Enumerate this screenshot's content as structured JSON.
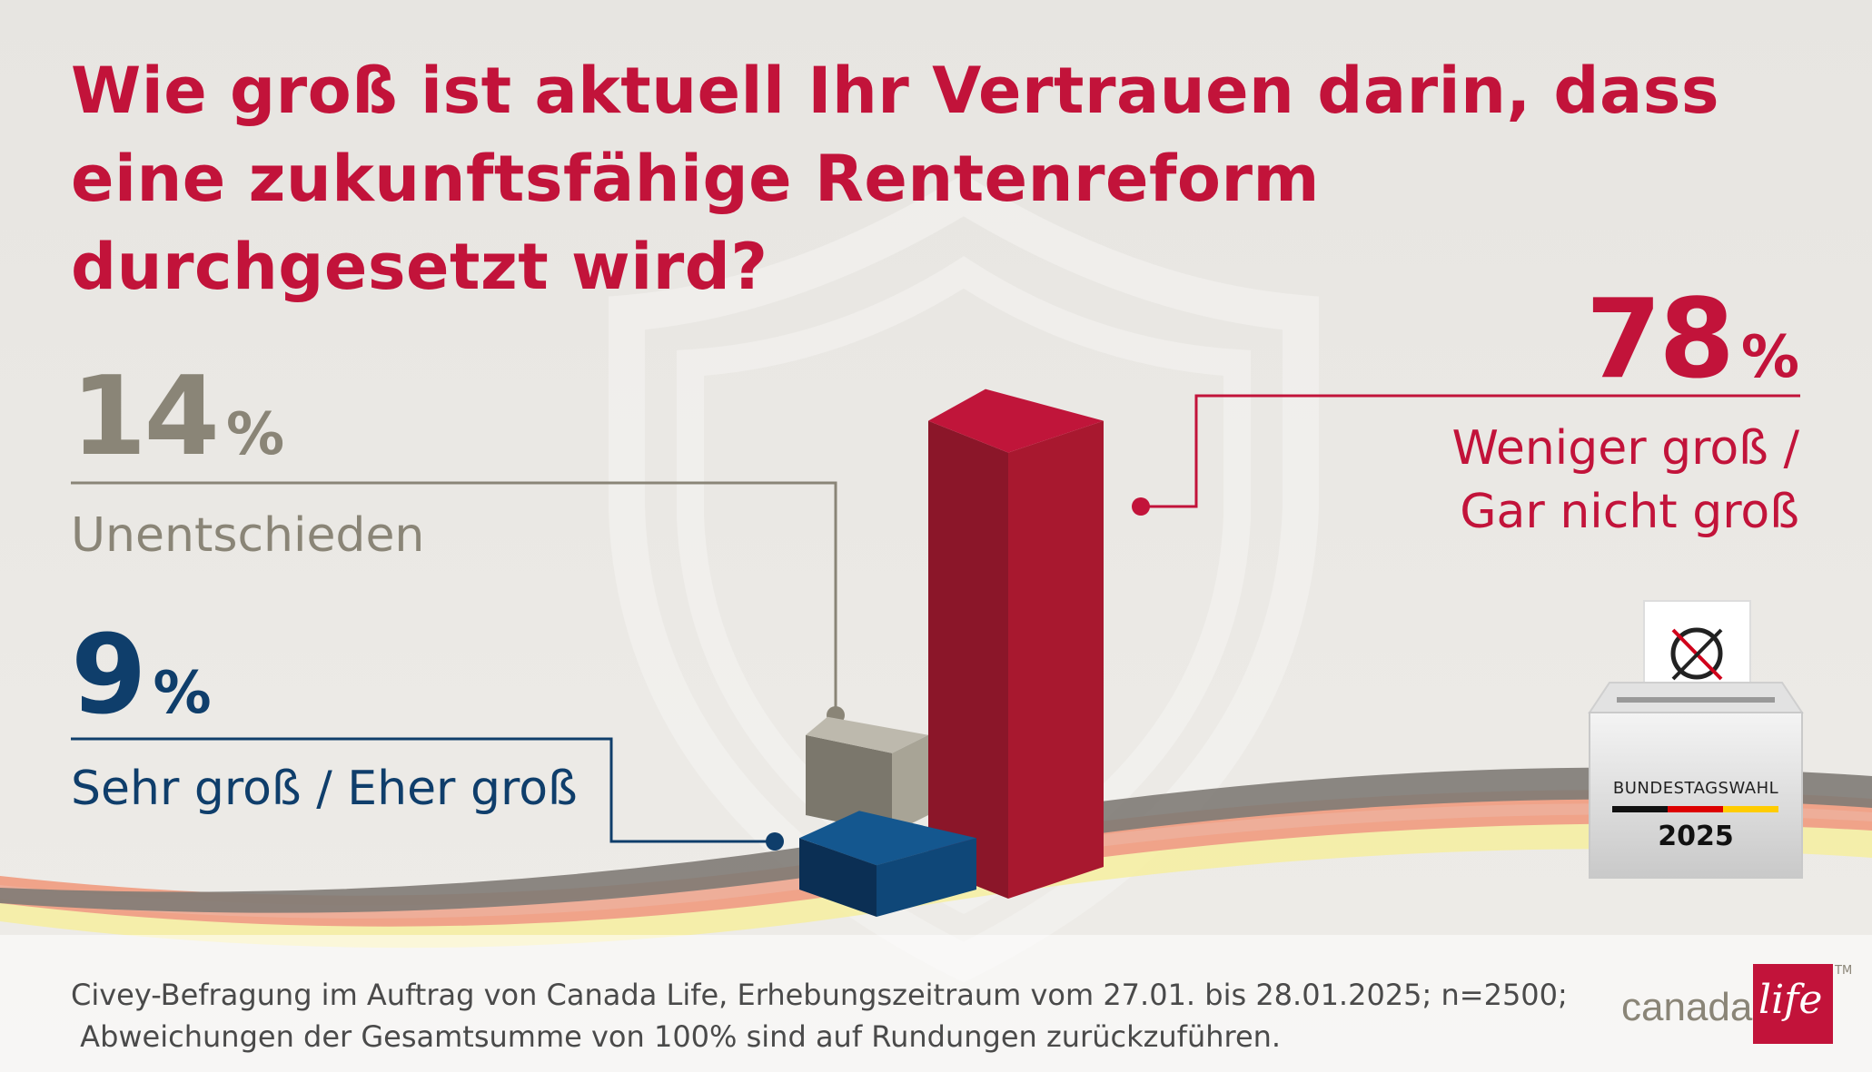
{
  "title": "Wie groß ist aktuell Ihr Vertrauen darin, dass eine zukunftsfähige Rentenreform durchgesetzt wird?",
  "footnote_line1": "Civey-Befragung im Auftrag von Canada Life, Erhebungszeitraum vom 27.01. bis 28.01.2025; n=2500;",
  "footnote_line2": " Abweichungen der Gesamtsumme von 100% sind auf Rundungen zurückzuführen.",
  "percent_sign": "%",
  "colors": {
    "title": "#c2133a",
    "negative": "#c2133a",
    "undecided": "#8a8577",
    "positive": "#0f3e6b"
  },
  "chart_data": {
    "type": "bar",
    "title": "Wie groß ist aktuell Ihr Vertrauen darin, dass eine zukunftsfähige Rentenreform durchgesetzt wird?",
    "categories": [
      "Sehr groß / Eher groß",
      "Unentschieden",
      "Weniger groß / Gar nicht groß"
    ],
    "values": [
      9,
      14,
      78
    ],
    "unit": "%",
    "labels": {
      "positive": {
        "value": "9",
        "text": "Sehr groß / Eher groß"
      },
      "undecided": {
        "value": "14",
        "text": "Unentschieden"
      },
      "negative": {
        "value": "78",
        "text_line1": "Weniger groß /",
        "text_line2": "Gar nicht groß"
      }
    }
  },
  "ballot_box": {
    "label": "BUNDESTAGSWAHL",
    "year": "2025",
    "flag_colors": [
      "#111111",
      "#dd0000",
      "#ffcc00"
    ]
  },
  "logo": {
    "word": "canada",
    "box_word": "life",
    "trademark": "TM"
  }
}
